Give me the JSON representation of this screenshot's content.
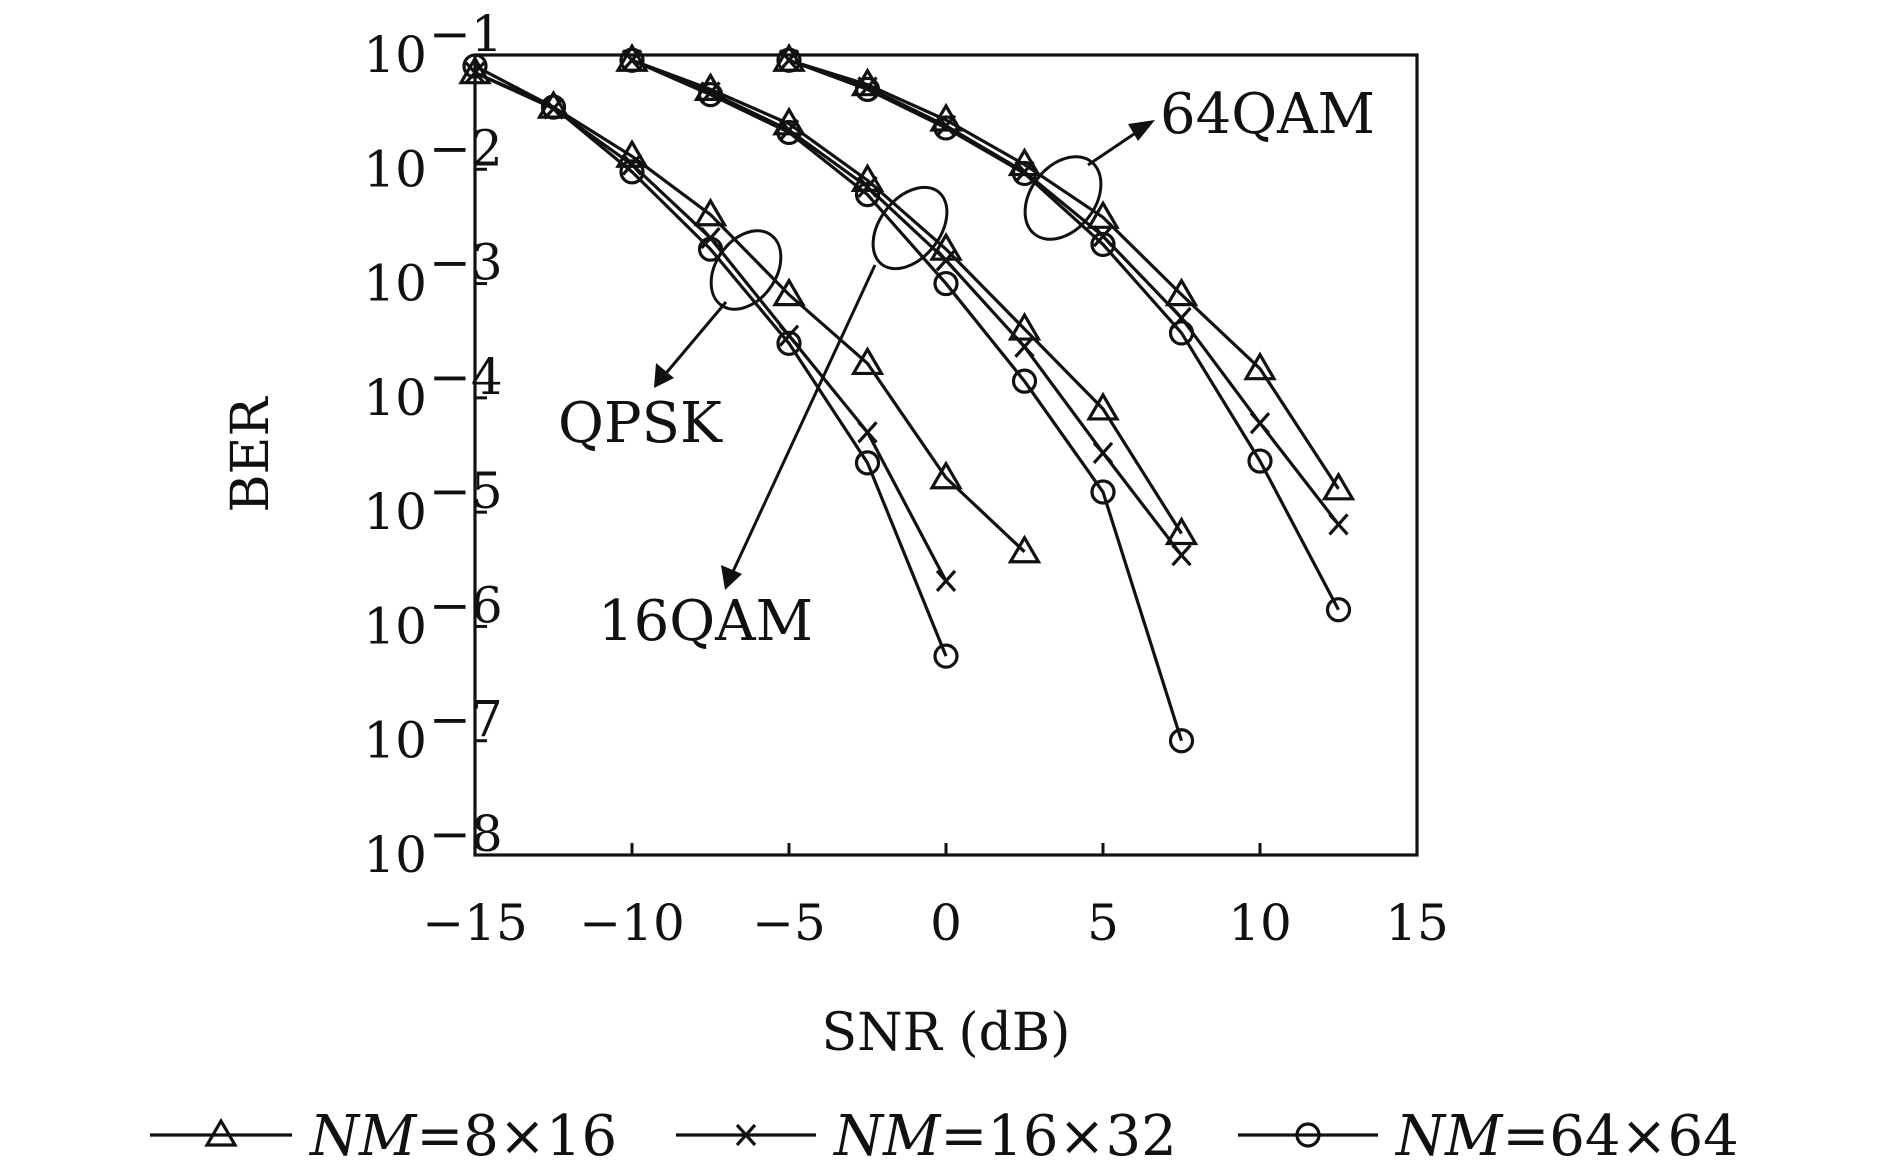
{
  "chart_data": {
    "type": "line",
    "xlabel": "SNR (dB)",
    "ylabel": "BER",
    "xlim": [
      -15,
      15
    ],
    "ylim": [
      1e-08,
      0.1
    ],
    "yscale": "log",
    "x_ticks": [
      "−15",
      "−10",
      "−5",
      "0",
      "5",
      "10",
      "15"
    ],
    "y_ticks": [
      {
        "base": "10",
        "exp": "−1"
      },
      {
        "base": "10",
        "exp": "−2"
      },
      {
        "base": "10",
        "exp": "−3"
      },
      {
        "base": "10",
        "exp": "−4"
      },
      {
        "base": "10",
        "exp": "−5"
      },
      {
        "base": "10",
        "exp": "−6"
      },
      {
        "base": "10",
        "exp": "−7"
      },
      {
        "base": "10",
        "exp": "−8"
      }
    ],
    "grid": false,
    "legend_position": "bottom",
    "legend": [
      {
        "marker": "triangle",
        "name_italic": "NM",
        "name_rest": "=8×16"
      },
      {
        "marker": "cross",
        "name_italic": "NM",
        "name_rest": "=16×32"
      },
      {
        "marker": "circle",
        "name_italic": "NM",
        "name_rest": "=64×64"
      }
    ],
    "annotations": [
      "64QAM",
      "QPSK",
      "16QAM"
    ],
    "series": [
      {
        "modulation": "QPSK",
        "legend_index": 0,
        "marker": "triangle",
        "x": [
          -15,
          -12.5,
          -10,
          -7.5,
          -5,
          -2.5,
          0,
          2.5
        ],
        "y": [
          0.07,
          0.035,
          0.013,
          0.004,
          0.0008,
          0.0002,
          2e-05,
          4.5e-06
        ]
      },
      {
        "modulation": "QPSK",
        "legend_index": 1,
        "marker": "cross",
        "x": [
          -15,
          -12.5,
          -10,
          -7.5,
          -5,
          -2.5,
          0
        ],
        "y": [
          0.07,
          0.034,
          0.011,
          0.0025,
          0.00035,
          5e-05,
          2.5e-06
        ]
      },
      {
        "modulation": "QPSK",
        "legend_index": 2,
        "marker": "circle",
        "x": [
          -15,
          -12.5,
          -10,
          -7.5,
          -5,
          -2.5,
          0
        ],
        "y": [
          0.08,
          0.035,
          0.0095,
          0.002,
          0.0003,
          2.7e-05,
          5.5e-07
        ]
      },
      {
        "modulation": "16QAM",
        "legend_index": 0,
        "marker": "triangle",
        "x": [
          -10,
          -7.5,
          -5,
          -2.5,
          0,
          2.5,
          5,
          7.5
        ],
        "y": [
          0.09,
          0.05,
          0.025,
          0.008,
          0.002,
          0.0004,
          8e-05,
          6.5e-06
        ]
      },
      {
        "modulation": "16QAM",
        "legend_index": 1,
        "marker": "cross",
        "x": [
          -10,
          -7.5,
          -5,
          -2.5,
          0,
          2.5,
          5,
          7.5
        ],
        "y": [
          0.09,
          0.047,
          0.022,
          0.007,
          0.0016,
          0.00028,
          3.3e-05,
          4.2e-06
        ]
      },
      {
        "modulation": "16QAM",
        "legend_index": 2,
        "marker": "circle",
        "x": [
          -10,
          -7.5,
          -5,
          -2.5,
          0,
          2.5,
          5,
          7.5
        ],
        "y": [
          0.09,
          0.045,
          0.021,
          0.006,
          0.001,
          0.00014,
          1.5e-05,
          1e-07
        ]
      },
      {
        "modulation": "64QAM",
        "legend_index": 0,
        "marker": "triangle",
        "x": [
          -5,
          -2.5,
          0,
          2.5,
          5,
          7.5,
          10,
          12.5
        ],
        "y": [
          0.09,
          0.055,
          0.027,
          0.011,
          0.0038,
          0.0008,
          0.00018,
          1.6e-05
        ]
      },
      {
        "modulation": "64QAM",
        "legend_index": 1,
        "marker": "cross",
        "x": [
          -5,
          -2.5,
          0,
          2.5,
          5,
          7.5,
          10,
          12.5
        ],
        "y": [
          0.09,
          0.052,
          0.024,
          0.0095,
          0.0026,
          0.0005,
          6e-05,
          7.8e-06
        ]
      },
      {
        "modulation": "64QAM",
        "legend_index": 2,
        "marker": "circle",
        "x": [
          -5,
          -2.5,
          0,
          2.5,
          5,
          7.5,
          10,
          12.5
        ],
        "y": [
          0.09,
          0.05,
          0.023,
          0.0092,
          0.0022,
          0.00037,
          2.8e-05,
          1.4e-06
        ]
      }
    ]
  }
}
